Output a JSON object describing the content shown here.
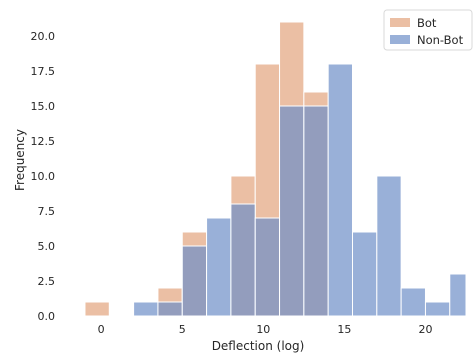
{
  "chart_data": {
    "type": "bar",
    "title": "",
    "xlabel": "Deflection (log)",
    "ylabel": "Frequency",
    "xlim": [
      -1.8,
      22.5
    ],
    "ylim": [
      0,
      22
    ],
    "xticks": [
      0,
      5,
      10,
      15,
      20
    ],
    "xtick_labels": [
      "0",
      "5",
      "10",
      "15",
      "20"
    ],
    "yticks": [
      0.0,
      2.5,
      5.0,
      7.5,
      10.0,
      12.5,
      15.0,
      17.5,
      20.0
    ],
    "ytick_labels": [
      "0.0",
      "2.5",
      "5.0",
      "7.5",
      "10.0",
      "12.5",
      "15.0",
      "17.5",
      "20.0"
    ],
    "grid": false,
    "legend_position": "top-right",
    "bin_edges": [
      -1.0,
      0.5,
      2.0,
      3.5,
      5.0,
      6.5,
      8.0,
      9.5,
      11.0,
      12.5,
      14.0,
      15.5,
      17.0,
      18.5,
      20.0,
      21.5,
      23.0
    ],
    "series": [
      {
        "name": "Bot",
        "color": "#E3A47E",
        "opacity": 0.7,
        "values": [
          1,
          0,
          0,
          2,
          6,
          0,
          10,
          18,
          21,
          16,
          0,
          0,
          0,
          0,
          0,
          0
        ]
      },
      {
        "name": "Non-Bot",
        "color": "#6E8FC8",
        "opacity": 0.7,
        "values": [
          0,
          0,
          1,
          1,
          5,
          7,
          8,
          7,
          15,
          15,
          18,
          6,
          10,
          2,
          1,
          3
        ]
      }
    ]
  }
}
